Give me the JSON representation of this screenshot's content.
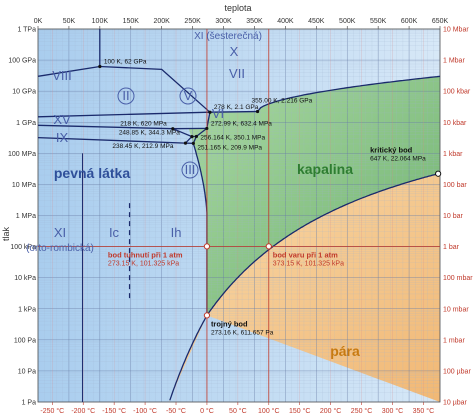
{
  "chart_data": {
    "type": "phase-diagram",
    "title": "teplota",
    "ylabel": "tlak",
    "x_top_ticks": [
      "0K",
      "50K",
      "100K",
      "150K",
      "200K",
      "250K",
      "300K",
      "350K",
      "400K",
      "450K",
      "500K",
      "550K",
      "600K",
      "650K"
    ],
    "x_bottom_ticks": [
      "-250 °C",
      "-200 °C",
      "-150 °C",
      "-100 °C",
      "-50 °C",
      "0 °C",
      "50 °C",
      "100 °C",
      "150 °C",
      "200 °C",
      "250 °C",
      "300 °C",
      "350 °C"
    ],
    "y_left_ticks": [
      "1 TPa",
      "100 GPa",
      "10 GPa",
      "1 GPa",
      "100 MPa",
      "10 MPa",
      "1 MPa",
      "100 kPa",
      "10 kPa",
      "1 kPa",
      "100 Pa",
      "10 Pa",
      "1 Pa"
    ],
    "y_right_ticks": [
      "10 Mbar",
      "1 Mbar",
      "100 kbar",
      "10 kbar",
      "1 kbar",
      "100 bar",
      "10 bar",
      "1 bar",
      "100 mbar",
      "10 mbar",
      "1 mbar",
      "100 µbar",
      "10 µbar"
    ],
    "xlim_kelvin": [
      0,
      650
    ],
    "ylim_pa_log10": [
      0,
      12
    ],
    "colors": {
      "solid": "#c8dff5",
      "liquid": "#8cc98c",
      "vapor": "#f5c98e",
      "boundary": "#1a2a6c",
      "guide": "#c0392b",
      "label_blue": "#4a5fa8",
      "label_green": "#2e7d32",
      "label_orange": "#c77a12"
    },
    "phases": [
      {
        "label": "pevná látka",
        "color": "#2f4f9a"
      },
      {
        "label": "kapalina",
        "color": "#2e7d32"
      },
      {
        "label": "pára",
        "color": "#c77a12"
      }
    ],
    "ice_regions": [
      "XI (šesterečná)",
      "X",
      "VIII",
      "VII",
      "II",
      "V",
      "VI",
      "XV",
      "III",
      "IX",
      "XI",
      "(orto-rombická)",
      "Ic",
      "Ih"
    ],
    "points": [
      {
        "label": "100 K, 62 GPa",
        "T_K": 100,
        "P_Pa": 62000000000.0
      },
      {
        "label": "278 K, 2.1 GPa",
        "T_K": 278,
        "P_Pa": 2100000000.0
      },
      {
        "label": "355.00 K, 2.216 GPa",
        "T_K": 355,
        "P_Pa": 2216000000.0
      },
      {
        "label": "218 K, 620 MPa",
        "T_K": 218,
        "P_Pa": 620000000.0
      },
      {
        "label": "272.99 K, 632.4 MPa",
        "T_K": 272.99,
        "P_Pa": 632400000.0
      },
      {
        "label": "248.85 K, 344.3 MPa",
        "T_K": 248.85,
        "P_Pa": 344300000.0
      },
      {
        "label": "256.164 K, 350.1 MPa",
        "T_K": 256.164,
        "P_Pa": 350100000.0
      },
      {
        "label": "238.45 K, 212.9 MPa",
        "T_K": 238.45,
        "P_Pa": 212900000.0
      },
      {
        "label": "251.165 K, 209.9 MPa",
        "T_K": 251.165,
        "P_Pa": 209900000.0
      }
    ],
    "critical": {
      "title": "kritický bod",
      "value": "647 K, 22.064 MPa",
      "T_K": 647,
      "P_Pa": 22064000.0
    },
    "triple": {
      "title": "trojný bod",
      "value": "273.16 K, 611.657 Pa",
      "T_K": 273.16,
      "P_Pa": 611.657
    },
    "melting": {
      "title": "bod tuhnutí při 1 atm",
      "value": "273.15 K, 101.325 kPa",
      "T_K": 273.15,
      "P_Pa": 101325
    },
    "boiling": {
      "title": "bod varu při 1 atm",
      "value": "373.15 K, 101.325 kPa",
      "T_K": 373.15,
      "P_Pa": 101325
    }
  }
}
